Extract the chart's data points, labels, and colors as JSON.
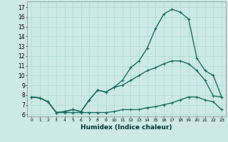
{
  "title": "",
  "xlabel": "Humidex (Indice chaleur)",
  "bg_color": "#cce9e5",
  "grid_color": "#b0d8d2",
  "line_color": "#1a6e60",
  "markersize": 2.5,
  "linewidth": 1.0,
  "xlim": [
    -0.5,
    23.5
  ],
  "ylim": [
    5.8,
    17.6
  ],
  "yticks": [
    6,
    7,
    8,
    9,
    10,
    11,
    12,
    13,
    14,
    15,
    16,
    17
  ],
  "xticks": [
    0,
    1,
    2,
    3,
    4,
    5,
    6,
    7,
    8,
    9,
    10,
    11,
    12,
    13,
    14,
    15,
    16,
    17,
    18,
    19,
    20,
    21,
    22,
    23
  ],
  "series": [
    {
      "x": [
        0,
        1,
        2,
        3,
        4,
        5,
        6,
        7,
        8,
        9,
        10,
        11,
        12,
        13,
        14,
        15,
        16,
        17,
        18,
        19,
        20,
        21,
        22,
        23
      ],
      "y": [
        7.8,
        7.7,
        7.3,
        6.2,
        6.3,
        6.5,
        6.3,
        7.5,
        8.5,
        8.3,
        8.8,
        9.5,
        10.8,
        11.5,
        12.8,
        14.8,
        16.3,
        16.8,
        16.5,
        15.8,
        11.8,
        10.5,
        10.0,
        7.8
      ]
    },
    {
      "x": [
        0,
        1,
        2,
        3,
        4,
        5,
        6,
        7,
        8,
        9,
        10,
        11,
        12,
        13,
        14,
        15,
        16,
        17,
        18,
        19,
        20,
        21,
        22,
        23
      ],
      "y": [
        7.8,
        7.7,
        7.3,
        6.2,
        6.3,
        6.5,
        6.3,
        7.5,
        8.5,
        8.3,
        8.8,
        9.0,
        9.5,
        10.0,
        10.5,
        10.8,
        11.2,
        11.5,
        11.5,
        11.2,
        10.5,
        9.5,
        7.9,
        7.8
      ]
    },
    {
      "x": [
        0,
        1,
        2,
        3,
        4,
        5,
        6,
        7,
        8,
        9,
        10,
        11,
        12,
        13,
        14,
        15,
        16,
        17,
        18,
        19,
        20,
        21,
        22,
        23
      ],
      "y": [
        7.8,
        7.7,
        7.3,
        6.2,
        6.2,
        6.2,
        6.2,
        6.2,
        6.2,
        6.2,
        6.3,
        6.5,
        6.5,
        6.5,
        6.7,
        6.8,
        7.0,
        7.2,
        7.5,
        7.8,
        7.8,
        7.5,
        7.3,
        6.5
      ]
    }
  ]
}
